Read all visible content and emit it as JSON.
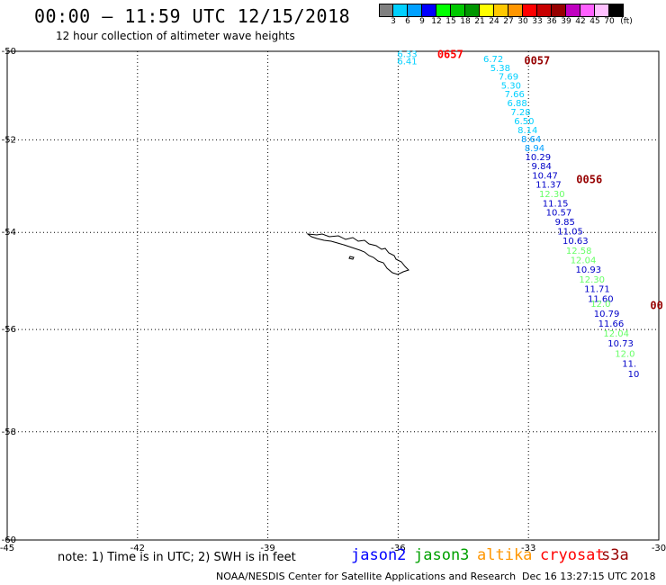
{
  "title": "00:00 – 11:59 UTC 12/15/2018",
  "subtitle": "12 hour collection of altimeter wave heights",
  "scale": {
    "colors": [
      "#808080",
      "#00d0ff",
      "#00a0ff",
      "#0000ff",
      "#00ff00",
      "#00c800",
      "#009600",
      "#ffff00",
      "#ffc800",
      "#ff9600",
      "#ff0000",
      "#c80000",
      "#960000",
      "#c000c0",
      "#ff60ff",
      "#ffc0ff",
      "#000000"
    ],
    "labels": [
      "3",
      "6",
      "9",
      "12",
      "15",
      "18",
      "21",
      "24",
      "27",
      "30",
      "33",
      "36",
      "39",
      "42",
      "45",
      "70"
    ],
    "unit": "(ft)"
  },
  "axes": {
    "x_ticks": [
      "-45",
      "-42",
      "-39",
      "-36",
      "-33",
      "-30"
    ],
    "y_ticks": [
      "-50",
      "-52",
      "-54",
      "-56",
      "-58",
      "-60"
    ],
    "lon_range": [
      -45,
      -30
    ],
    "lat_range": [
      -60,
      -50
    ]
  },
  "tracks": [
    {
      "lon": -35.79,
      "lat": -50.05,
      "v": "6.33",
      "color": "#00d0ff"
    },
    {
      "lon": -35.79,
      "lat": -50.22,
      "v": "6.41",
      "color": "#00d0ff"
    },
    {
      "lon": -33.81,
      "lat": -50.17,
      "v": "6.72",
      "color": "#00d0ff"
    },
    {
      "lon": -33.65,
      "lat": -50.37,
      "v": "5.38",
      "color": "#00d0ff"
    },
    {
      "lon": -33.46,
      "lat": -50.57,
      "v": "7.69",
      "color": "#00d0ff"
    },
    {
      "lon": -33.4,
      "lat": -50.77,
      "v": "5.30",
      "color": "#00d0ff"
    },
    {
      "lon": -33.32,
      "lat": -50.97,
      "v": "7.66",
      "color": "#00d0ff"
    },
    {
      "lon": -33.26,
      "lat": -51.17,
      "v": "6.88",
      "color": "#00d0ff"
    },
    {
      "lon": -33.18,
      "lat": -51.37,
      "v": "7.28",
      "color": "#00d0ff"
    },
    {
      "lon": -33.1,
      "lat": -51.57,
      "v": "6.50",
      "color": "#00d0ff"
    },
    {
      "lon": -33.02,
      "lat": -51.77,
      "v": "8.14",
      "color": "#00d0ff"
    },
    {
      "lon": -32.94,
      "lat": -51.97,
      "v": "8.64",
      "color": "#00a0ff"
    },
    {
      "lon": -32.86,
      "lat": -52.17,
      "v": "8.94",
      "color": "#00a0ff"
    },
    {
      "lon": -32.78,
      "lat": -52.37,
      "v": "10.29",
      "color": "#0000c8"
    },
    {
      "lon": -32.7,
      "lat": -52.57,
      "v": "9.84",
      "color": "#0000c8"
    },
    {
      "lon": -32.62,
      "lat": -52.77,
      "v": "10.47",
      "color": "#0000c8"
    },
    {
      "lon": -32.54,
      "lat": -52.97,
      "v": "11.37",
      "color": "#0000c8"
    },
    {
      "lon": -32.46,
      "lat": -53.17,
      "v": "12.30",
      "color": "#66ff66"
    },
    {
      "lon": -32.38,
      "lat": -53.37,
      "v": "11.15",
      "color": "#0000c8"
    },
    {
      "lon": -32.3,
      "lat": -53.57,
      "v": "10.57",
      "color": "#0000c8"
    },
    {
      "lon": -32.16,
      "lat": -53.77,
      "v": "9.85",
      "color": "#0000c8"
    },
    {
      "lon": -32.04,
      "lat": -53.97,
      "v": "11.05",
      "color": "#0000c8"
    },
    {
      "lon": -31.92,
      "lat": -54.17,
      "v": "10.63",
      "color": "#0000c8"
    },
    {
      "lon": -31.84,
      "lat": -54.37,
      "v": "12.58",
      "color": "#66ff66"
    },
    {
      "lon": -31.74,
      "lat": -54.57,
      "v": "12.04",
      "color": "#66ff66"
    },
    {
      "lon": -31.62,
      "lat": -54.77,
      "v": "10.93",
      "color": "#0000c8"
    },
    {
      "lon": -31.54,
      "lat": -54.97,
      "v": "12.30",
      "color": "#66ff66"
    },
    {
      "lon": -31.42,
      "lat": -55.17,
      "v": "11.71",
      "color": "#0000c8"
    },
    {
      "lon": -31.34,
      "lat": -55.37,
      "v": "11.60",
      "color": "#0000c8"
    },
    {
      "lon": -31.34,
      "lat": -55.47,
      "v": "12.0",
      "color": "#66ff66"
    },
    {
      "lon": -31.2,
      "lat": -55.67,
      "v": "10.79",
      "color": "#0000c8"
    },
    {
      "lon": -31.1,
      "lat": -55.87,
      "v": "11.66",
      "color": "#0000c8"
    },
    {
      "lon": -30.98,
      "lat": -56.07,
      "v": "12.04",
      "color": "#66ff66"
    },
    {
      "lon": -30.88,
      "lat": -56.27,
      "v": "10.73",
      "color": "#0000c8"
    },
    {
      "lon": -30.78,
      "lat": -56.47,
      "v": "12.0",
      "color": "#66ff66"
    },
    {
      "lon": -30.68,
      "lat": -56.67,
      "v": "11.",
      "color": "#0000c8"
    },
    {
      "lon": -30.58,
      "lat": -56.87,
      "v": "10",
      "color": "#0000c8"
    }
  ],
  "pass_labels": [
    {
      "lon": -35.1,
      "lat": -50.05,
      "text": "0657",
      "color": "#ff0000"
    },
    {
      "lon": -33.1,
      "lat": -50.2,
      "text": "0057",
      "color": "#960000"
    },
    {
      "lon": -31.9,
      "lat": -52.85,
      "text": "0056",
      "color": "#960000"
    },
    {
      "lon": -30.2,
      "lat": -55.5,
      "text": "00",
      "color": "#960000"
    }
  ],
  "note": "note: 1) Time is in UTC; 2) SWH is in feet",
  "satellites": [
    {
      "name": "jason2",
      "color": "#0000ff"
    },
    {
      "name": "jason3",
      "color": "#00a000"
    },
    {
      "name": "altika",
      "color": "#ff9600"
    },
    {
      "name": "cryosat",
      "color": "#ff0000"
    },
    {
      "name": "s3a",
      "color": "#960000"
    }
  ],
  "credit": "NOAA/NESDIS Center for Satellite Applications and Research",
  "timestamp": "Dec 16 13:27:15 UTC 2018"
}
